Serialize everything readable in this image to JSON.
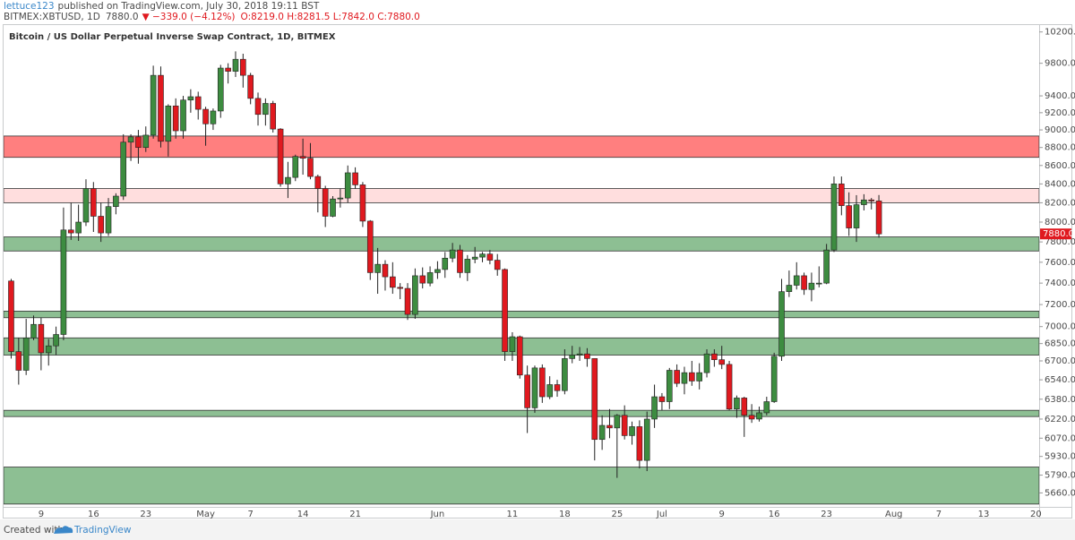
{
  "header": {
    "author": "lettuce123",
    "published": "published on TradingView.com, July 30, 2018 19:11 BST",
    "symbol": "BITMEX:XBTUSD, 1D",
    "price": "7880.0",
    "change": "▼ −339.0 (−4.12%)",
    "ohlc": "O:8219.0 H:8281.5 L:7842.0 C:7880.0"
  },
  "footer": {
    "created": "Created with",
    "brand": "TradingView"
  },
  "chart_data": {
    "type": "candlestick",
    "title": "Bitcoin / US Dollar Perpetual Inverse Swap Contract, 1D, BITMEX",
    "log_scale": true,
    "grid": false,
    "up_color": "#3d8c40",
    "down_color": "#e0191f",
    "ylim": [
      5560,
      10290
    ],
    "yticks": [
      {
        "value": 10200,
        "label": "10200.0"
      },
      {
        "value": 9800,
        "label": "9800.0"
      },
      {
        "value": 9400,
        "label": "9400.0"
      },
      {
        "value": 9200,
        "label": "9200.0"
      },
      {
        "value": 9000,
        "label": "9000.0"
      },
      {
        "value": 8800,
        "label": "8800.0"
      },
      {
        "value": 8600,
        "label": "8600.0"
      },
      {
        "value": 8400,
        "label": "8400.0"
      },
      {
        "value": 8200,
        "label": "8200.0"
      },
      {
        "value": 8000,
        "label": "8000.0"
      },
      {
        "value": 7800,
        "label": "7800.0"
      },
      {
        "value": 7600,
        "label": "7600.0"
      },
      {
        "value": 7400,
        "label": "7400.0"
      },
      {
        "value": 7200,
        "label": "7200.0"
      },
      {
        "value": 7000,
        "label": "7000.0"
      },
      {
        "value": 6850,
        "label": "6850.0"
      },
      {
        "value": 6700,
        "label": "6700.0"
      },
      {
        "value": 6540,
        "label": "6540.0"
      },
      {
        "value": 6380,
        "label": "6380.0"
      },
      {
        "value": 6220,
        "label": "6220.0"
      },
      {
        "value": 6070,
        "label": "6070.0"
      },
      {
        "value": 5930,
        "label": "5930.0"
      },
      {
        "value": 5790,
        "label": "5790.0"
      },
      {
        "value": 5660,
        "label": "5660.0"
      }
    ],
    "last_price": {
      "value": 7880,
      "label": "7880.0"
    },
    "zones": [
      {
        "low": 8690,
        "high": 8930,
        "color": "#ff7f7f"
      },
      {
        "low": 8200,
        "high": 8350,
        "color": "#ffdede"
      },
      {
        "low": 7710,
        "high": 7850,
        "color": "#8dbf93"
      },
      {
        "low": 7080,
        "high": 7140,
        "color": "#8dbf93"
      },
      {
        "low": 6750,
        "high": 6900,
        "color": "#8dbf93"
      },
      {
        "low": 6240,
        "high": 6290,
        "color": "#8dbf93"
      },
      {
        "low": 5580,
        "high": 5850,
        "color": "#8dbf93"
      }
    ],
    "categories": [
      null,
      null,
      null,
      null,
      "9",
      null,
      null,
      null,
      null,
      null,
      null,
      "16",
      null,
      null,
      null,
      null,
      null,
      null,
      "23",
      null,
      null,
      null,
      null,
      null,
      null,
      null,
      "May",
      null,
      null,
      null,
      null,
      null,
      "7",
      null,
      null,
      null,
      null,
      null,
      null,
      "14",
      null,
      null,
      null,
      null,
      null,
      null,
      "21",
      null,
      null,
      null,
      null,
      null,
      null,
      null,
      null,
      null,
      null,
      "Jun",
      null,
      null,
      null,
      null,
      null,
      null,
      null,
      null,
      null,
      "11",
      null,
      null,
      null,
      null,
      null,
      null,
      "18",
      null,
      null,
      null,
      null,
      null,
      null,
      "25",
      null,
      null,
      null,
      null,
      null,
      "Jul",
      null,
      null,
      null,
      null,
      null,
      null,
      null,
      "9",
      null,
      null,
      null,
      null,
      null,
      null,
      "16",
      null,
      null,
      null,
      null,
      null,
      null,
      "23",
      null,
      null,
      null,
      null,
      null,
      null,
      null,
      null,
      "Aug",
      null,
      null,
      null,
      null,
      null,
      "7",
      null,
      null,
      null,
      null,
      null,
      "13",
      null,
      null,
      null,
      null,
      null,
      null,
      "20"
    ],
    "open": [
      7420,
      6780,
      6620,
      6900,
      7020,
      6770,
      6830,
      6930,
      7920,
      7890,
      8000,
      8350,
      8060,
      7890,
      8160,
      8270,
      8860,
      8920,
      8800,
      8940,
      9650,
      8870,
      9280,
      8990,
      9350,
      9390,
      9240,
      9070,
      9220,
      9740,
      9700,
      9850,
      9650,
      9370,
      9180,
      9310,
      9010,
      8400,
      8470,
      8700,
      8680,
      8480,
      8350,
      8060,
      8240,
      8250,
      8520,
      8390,
      8010,
      7500,
      7580,
      7460,
      7360,
      7350,
      7110,
      7470,
      7400,
      7500,
      7530,
      7640,
      7720,
      7500,
      7630,
      7650,
      7680,
      7620,
      7530,
      6780,
      6910,
      6580,
      6310,
      6640,
      6400,
      6500,
      6450,
      6720,
      6750,
      6760,
      6720,
      6060,
      6170,
      6150,
      6250,
      6090,
      6160,
      5900,
      6220,
      6400,
      6360,
      6620,
      6510,
      6600,
      6530,
      6600,
      6760,
      6710,
      6670,
      6300,
      6390,
      6250,
      6220,
      6270,
      6360,
      6740,
      7320,
      7380,
      7470,
      7340,
      7400,
      7400,
      7720,
      8400,
      8170,
      7940,
      8180,
      8230,
      8219,
      null,
      null,
      null,
      null,
      null,
      null,
      null,
      null,
      null,
      null,
      null,
      null,
      null,
      null,
      null,
      null,
      null,
      null,
      null,
      null,
      null
    ],
    "high": [
      7440,
      6900,
      7070,
      7100,
      7080,
      6890,
      7000,
      8150,
      8200,
      8180,
      8450,
      8420,
      8200,
      8250,
      8300,
      8950,
      8950,
      9000,
      9040,
      9770,
      9760,
      9300,
      9370,
      9400,
      9480,
      9450,
      9270,
      9250,
      9780,
      9800,
      9950,
      9920,
      9680,
      9440,
      9370,
      9340,
      9020,
      8640,
      8720,
      8900,
      8850,
      8500,
      8380,
      8270,
      8350,
      8600,
      8580,
      8420,
      8020,
      7740,
      7620,
      7600,
      7400,
      7400,
      7540,
      7550,
      7560,
      7610,
      7700,
      7790,
      7770,
      7670,
      7750,
      7700,
      7720,
      7680,
      7540,
      6950,
      6920,
      6660,
      6660,
      6670,
      6570,
      6540,
      6800,
      6830,
      6820,
      6810,
      6720,
      6250,
      6300,
      6260,
      6330,
      6200,
      6210,
      6280,
      6500,
      6430,
      6640,
      6670,
      6650,
      6700,
      6680,
      6800,
      6800,
      6830,
      6700,
      6410,
      6400,
      6340,
      6320,
      6400,
      6770,
      7440,
      7520,
      7600,
      7500,
      7500,
      7560,
      7780,
      8480,
      8480,
      8310,
      8280,
      8290,
      8250,
      8281.5,
      null,
      null,
      null,
      null,
      null,
      null,
      null,
      null,
      null,
      null,
      null,
      null,
      null,
      null,
      null,
      null,
      null,
      null,
      null,
      null,
      null
    ],
    "low": [
      6720,
      6500,
      6580,
      6880,
      6620,
      6660,
      6750,
      6880,
      7820,
      7810,
      7960,
      7900,
      7800,
      7860,
      8080,
      8230,
      8650,
      8620,
      8750,
      8900,
      8800,
      8700,
      8900,
      8900,
      9200,
      9120,
      8820,
      9000,
      9140,
      9550,
      9630,
      9500,
      9300,
      9050,
      9050,
      8970,
      8370,
      8250,
      8430,
      8500,
      8450,
      8100,
      7950,
      8050,
      8150,
      8200,
      8350,
      7950,
      7430,
      7300,
      7330,
      7300,
      7250,
      7060,
      7070,
      7350,
      7370,
      7440,
      7450,
      7600,
      7450,
      7420,
      7590,
      7600,
      7580,
      7470,
      6700,
      6700,
      6550,
      6110,
      6270,
      6350,
      6380,
      6400,
      6420,
      6680,
      6700,
      6650,
      5900,
      5980,
      6070,
      5770,
      6060,
      6020,
      5840,
      5820,
      6150,
      6290,
      6300,
      6480,
      6420,
      6490,
      6460,
      6560,
      6650,
      6630,
      6290,
      6230,
      6080,
      6190,
      6200,
      6250,
      6350,
      6700,
      7270,
      7340,
      7290,
      7230,
      7360,
      7390,
      7700,
      8070,
      7860,
      7800,
      8120,
      8130,
      7842,
      null,
      null,
      null,
      null,
      null,
      null,
      null,
      null,
      null,
      null,
      null,
      null,
      null,
      null,
      null,
      null,
      null,
      null,
      null,
      null,
      null
    ],
    "close": [
      6780,
      6620,
      6900,
      7020,
      6770,
      6830,
      6930,
      7920,
      7890,
      8000,
      8350,
      8060,
      7890,
      8160,
      8270,
      8860,
      8920,
      8800,
      8940,
      9650,
      8870,
      9280,
      8990,
      9350,
      9390,
      9240,
      9070,
      9220,
      9740,
      9700,
      9850,
      9650,
      9370,
      9180,
      9310,
      9010,
      8400,
      8470,
      8700,
      8680,
      8480,
      8350,
      8060,
      8240,
      8250,
      8520,
      8390,
      8010,
      7500,
      7580,
      7460,
      7360,
      7350,
      7110,
      7470,
      7400,
      7500,
      7530,
      7640,
      7720,
      7500,
      7630,
      7650,
      7680,
      7620,
      7530,
      6780,
      6910,
      6580,
      6310,
      6640,
      6400,
      6500,
      6450,
      6720,
      6750,
      6760,
      6720,
      6060,
      6170,
      6150,
      6250,
      6090,
      6160,
      5900,
      6220,
      6400,
      6360,
      6620,
      6510,
      6600,
      6530,
      6600,
      6760,
      6710,
      6670,
      6300,
      6390,
      6250,
      6220,
      6270,
      6360,
      6740,
      7320,
      7380,
      7470,
      7340,
      7400,
      7400,
      7720,
      8400,
      8170,
      7940,
      8180,
      8230,
      8219,
      7880,
      null,
      null,
      null,
      null,
      null,
      null,
      null,
      null,
      null,
      null,
      null,
      null,
      null,
      null,
      null,
      null,
      null,
      null,
      null,
      null,
      null
    ]
  }
}
